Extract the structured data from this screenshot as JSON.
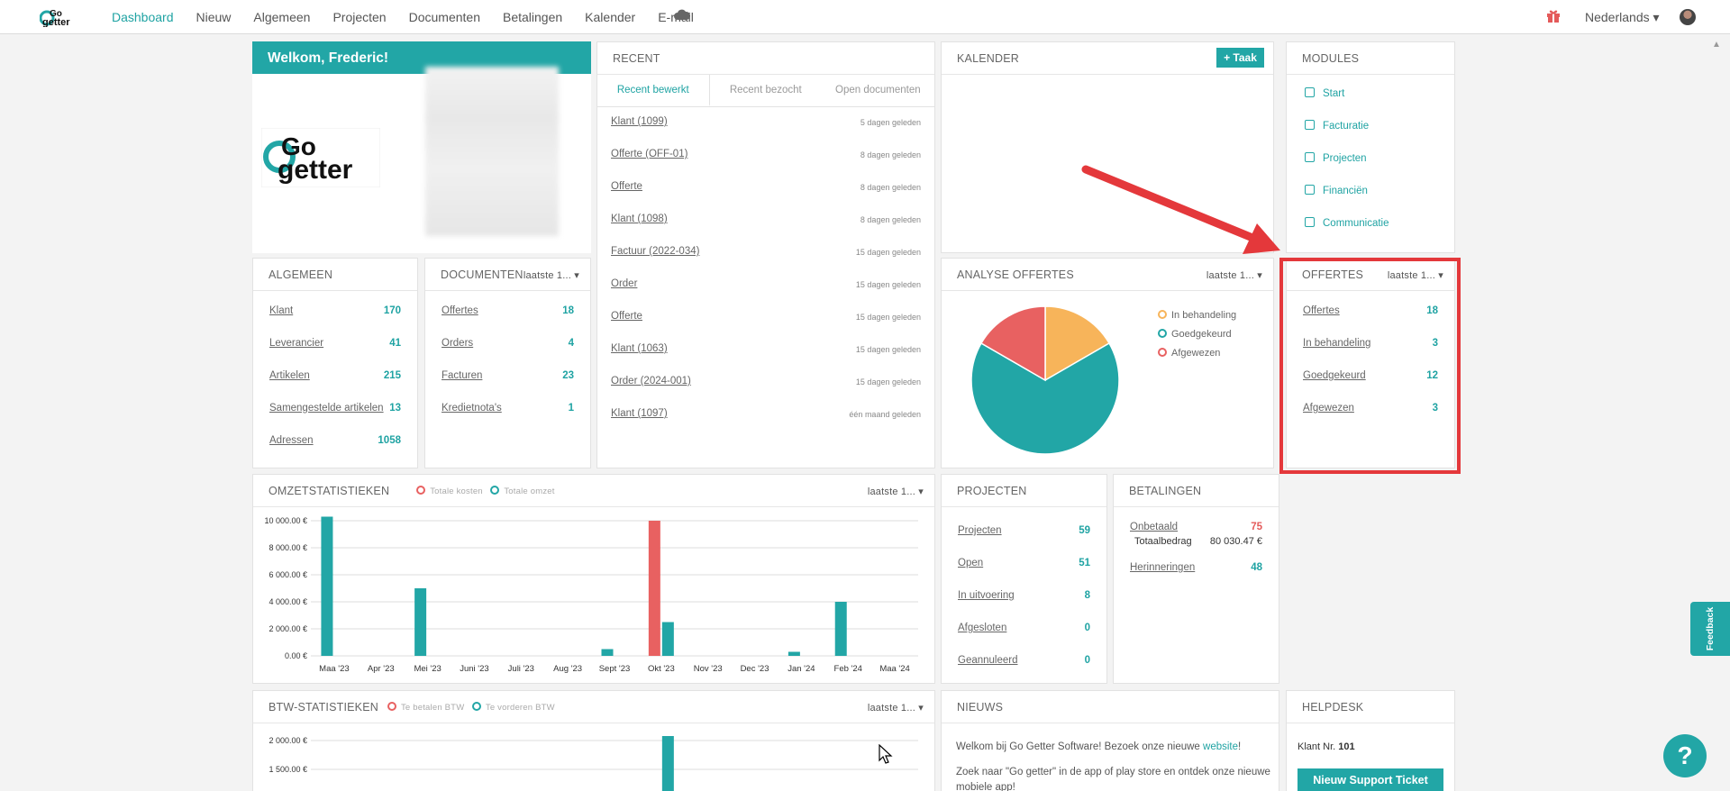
{
  "nav": {
    "items": [
      "Dashboard",
      "Nieuw",
      "Algemeen",
      "Projecten",
      "Documenten",
      "Betalingen",
      "Kalender",
      "E-mail"
    ],
    "active": "Dashboard",
    "language": "Nederlands"
  },
  "welcome": {
    "title": "Welkom, Frederic!"
  },
  "recent": {
    "title": "RECENT",
    "tabs": [
      "Recent bewerkt",
      "Recent bezocht",
      "Open documenten"
    ],
    "items": [
      {
        "label": "Klant (1099)",
        "time": "5 dagen geleden"
      },
      {
        "label": "Offerte (OFF-01)",
        "time": "8 dagen geleden"
      },
      {
        "label": "Offerte",
        "time": "8 dagen geleden"
      },
      {
        "label": "Klant (1098)",
        "time": "8 dagen geleden"
      },
      {
        "label": "Factuur (2022-034)",
        "time": "15 dagen geleden"
      },
      {
        "label": "Order",
        "time": "15 dagen geleden"
      },
      {
        "label": "Offerte",
        "time": "15 dagen geleden"
      },
      {
        "label": "Klant (1063)",
        "time": "15 dagen geleden"
      },
      {
        "label": "Order (2024-001)",
        "time": "15 dagen geleden"
      },
      {
        "label": "Klant (1097)",
        "time": "één maand geleden"
      }
    ]
  },
  "kalender": {
    "title": "KALENDER",
    "add_label": "+ Taak"
  },
  "modules": {
    "title": "MODULES",
    "items": [
      "Start",
      "Facturatie",
      "Projecten",
      "Financiën",
      "Communicatie"
    ]
  },
  "algemeen": {
    "title": "ALGEMEEN",
    "rows": [
      {
        "label": "Klant",
        "value": "170"
      },
      {
        "label": "Leverancier",
        "value": "41"
      },
      {
        "label": "Artikelen",
        "value": "215"
      },
      {
        "label": "Samengestelde artikelen",
        "value": "13"
      },
      {
        "label": "Adressen",
        "value": "1058"
      }
    ]
  },
  "documenten": {
    "title": "DOCUMENTEN",
    "dropdown": "laatste 1...",
    "rows": [
      {
        "label": "Offertes",
        "value": "18"
      },
      {
        "label": "Orders",
        "value": "4"
      },
      {
        "label": "Facturen",
        "value": "23"
      },
      {
        "label": "Kredietnota's",
        "value": "1"
      }
    ]
  },
  "analyse": {
    "title": "ANALYSE OFFERTES",
    "dropdown": "laatste 1...",
    "legend": [
      "In behandeling",
      "Goedgekeurd",
      "Afgewezen"
    ]
  },
  "offertes": {
    "title": "OFFERTES",
    "dropdown": "laatste 1...",
    "rows": [
      {
        "label": "Offertes",
        "value": "18"
      },
      {
        "label": "In behandeling",
        "value": "3"
      },
      {
        "label": "Goedgekeurd",
        "value": "12"
      },
      {
        "label": "Afgewezen",
        "value": "3"
      }
    ]
  },
  "omzet": {
    "title": "OMZETSTATISTIEKEN",
    "dropdown": "laatste 1...",
    "legend": [
      "Totale kosten",
      "Totale omzet"
    ]
  },
  "projecten": {
    "title": "PROJECTEN",
    "rows": [
      {
        "label": "Projecten",
        "value": "59"
      },
      {
        "label": "Open",
        "value": "51"
      },
      {
        "label": "In uitvoering",
        "value": "8"
      },
      {
        "label": "Afgesloten",
        "value": "0"
      },
      {
        "label": "Geannuleerd",
        "value": "0"
      }
    ]
  },
  "betalingen": {
    "title": "BETALINGEN",
    "onbetaald_label": "Onbetaald",
    "onbetaald_value": "75",
    "totaal_label": "Totaalbedrag",
    "totaal_value": "80 030.47 €",
    "herinneringen_label": "Herinneringen",
    "herinneringen_value": "48"
  },
  "btw": {
    "title": "BTW-STATISTIEKEN",
    "dropdown": "laatste 1...",
    "legend": [
      "Te betalen BTW",
      "Te vorderen BTW"
    ]
  },
  "nieuws": {
    "title": "NIEUWS",
    "line1_pre": "Welkom bij Go Getter Software! Bezoek onze nieuwe ",
    "line1_link": "website",
    "line1_post": "!",
    "line2": "Zoek naar \"Go getter\" in de app of play store en ontdek onze nieuwe mobiele app!"
  },
  "helpdesk": {
    "title": "HELPDESK",
    "klant_label": "Klant Nr.",
    "klant_nr": "101",
    "ticket_label": "Nieuw Support Ticket"
  },
  "feedback_label": "Feedback",
  "chart_data": [
    {
      "type": "pie",
      "title": "ANALYSE OFFERTES",
      "categories": [
        "In behandeling",
        "Goedgekeurd",
        "Afgewezen"
      ],
      "values": [
        3,
        12,
        3
      ],
      "colors": [
        "#f7b45a",
        "#22a6a6",
        "#e86161"
      ],
      "legend": "top-right"
    },
    {
      "type": "bar",
      "title": "OMZETSTATISTIEKEN",
      "categories": [
        "Maa '23",
        "Apr '23",
        "Mei '23",
        "Juni '23",
        "Juli '23",
        "Aug '23",
        "Sept '23",
        "Okt '23",
        "Nov '23",
        "Dec '23",
        "Jan '24",
        "Feb '24",
        "Maa '24"
      ],
      "series": [
        {
          "name": "Totale kosten",
          "color": "#e86161",
          "values": [
            0,
            0,
            0,
            0,
            0,
            0,
            0,
            10000,
            0,
            0,
            0,
            0,
            0
          ]
        },
        {
          "name": "Totale omzet",
          "color": "#22a6a6",
          "values": [
            10300,
            0,
            5000,
            0,
            0,
            0,
            500,
            2500,
            0,
            0,
            300,
            4000,
            0
          ]
        }
      ],
      "yticks": [
        "10 000.00 €",
        "8 000.00 €",
        "6 000.00 €",
        "4 000.00 €",
        "2 000.00 €",
        "0.00 €"
      ],
      "ylim": [
        0,
        10000
      ],
      "grid": true
    },
    {
      "type": "bar",
      "title": "BTW-STATISTIEKEN",
      "series": [
        {
          "name": "Te betalen BTW",
          "color": "#e86161"
        },
        {
          "name": "Te vorderen BTW",
          "color": "#22a6a6"
        }
      ],
      "yticks": [
        "2 000.00 €",
        "1 500.00 €"
      ],
      "visible_bar_category_index": 7,
      "grid": true
    }
  ]
}
